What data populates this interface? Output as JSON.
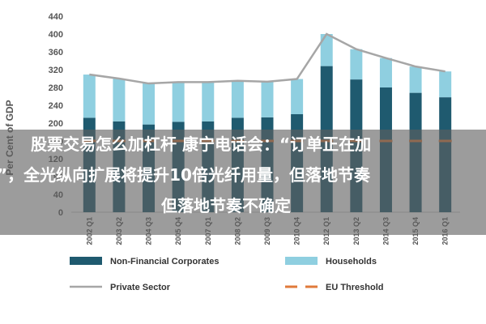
{
  "colors": {
    "non_financial": "#1f5a6f",
    "households": "#8fcfe0",
    "private_sector": "#a6a6a6",
    "eu_threshold": "#e07a3a",
    "overlay": "#5f5f5f"
  },
  "chart_data": {
    "type": "bar",
    "stacked": true,
    "title": "",
    "xlabel": "",
    "ylabel": "Per Cent of GDP",
    "ylim": [
      0,
      440
    ],
    "yticks": [
      0,
      40,
      80,
      120,
      160,
      200,
      240,
      280,
      320,
      360,
      400,
      440
    ],
    "categories": [
      "2002 Q1",
      "2003 Q2",
      "2004 Q3",
      "2005 Q4",
      "2007 Q1",
      "2008 Q2",
      "2009 Q3",
      "2010 Q4",
      "2012 Q1",
      "2013 Q2",
      "2014 Q3",
      "2015 Q4",
      "2016 Q1"
    ],
    "series": [
      {
        "name": "Non-Financial Corporates",
        "kind": "bar",
        "color": "#1f5a6f",
        "values": [
          212,
          204,
          197,
          203,
          204,
          212,
          213,
          220,
          328,
          298,
          280,
          268,
          258
        ]
      },
      {
        "name": "Households",
        "kind": "bar",
        "color": "#8fcfe0",
        "values": [
          97,
          96,
          92,
          89,
          88,
          83,
          80,
          79,
          72,
          68,
          66,
          59,
          58
        ]
      },
      {
        "name": "Private Sector",
        "kind": "line",
        "color": "#a6a6a6",
        "values": [
          309,
          300,
          289,
          292,
          292,
          295,
          293,
          299,
          400,
          366,
          346,
          327,
          316
        ]
      },
      {
        "name": "EU Threshold",
        "kind": "dashed-line",
        "color": "#e07a3a",
        "values": [
          160,
          160,
          160,
          160,
          160,
          160,
          160,
          160,
          160,
          160,
          160,
          160,
          160
        ]
      }
    ],
    "grid": false,
    "legend_position": "bottom"
  },
  "overlay": {
    "line1": "股票交易怎么加杠杆 康宁电话会：“订单正在加",
    "line2": "”，全光纵向扩展将提升10倍光纤用量，但落地节奏",
    "line3": "但落地节奏不确定"
  }
}
